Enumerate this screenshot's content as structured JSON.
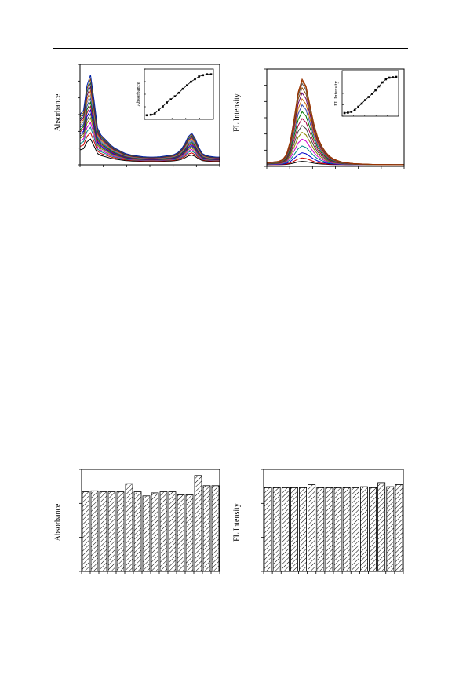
{
  "page": {
    "header_rule": true
  },
  "charts": [
    {
      "id": "absorbance-spectra",
      "type": "line",
      "ylabel": "Absorbance",
      "inset": {
        "type": "line",
        "ylabel": "Absorbance",
        "values": [
          0.04,
          0.05,
          0.08,
          0.16,
          0.24,
          0.33,
          0.4,
          0.47,
          0.55,
          0.64,
          0.72,
          0.8,
          0.86,
          0.92,
          0.95,
          0.97,
          0.97
        ]
      },
      "series_colors": [
        "#000000",
        "#cc0000",
        "#008888",
        "#cc00cc",
        "#888800",
        "#444444",
        "#0000cc",
        "#aa0044",
        "#007700",
        "#3344aa",
        "#888888",
        "#cc6600",
        "#660066",
        "#005555",
        "#884400",
        "#0022aa"
      ],
      "x": [
        0,
        1,
        2,
        3,
        4,
        5,
        6,
        7,
        8,
        9,
        10,
        11,
        12,
        13,
        14,
        15,
        16,
        17,
        18,
        19,
        20,
        21,
        22,
        23,
        24,
        25,
        26,
        27,
        28,
        29,
        30,
        31,
        32,
        33,
        34,
        35,
        36,
        37,
        38,
        39,
        40
      ],
      "base_shape": [
        0.55,
        0.6,
        0.88,
        1.0,
        0.72,
        0.4,
        0.32,
        0.28,
        0.24,
        0.2,
        0.17,
        0.15,
        0.13,
        0.11,
        0.1,
        0.09,
        0.085,
        0.08,
        0.075,
        0.072,
        0.07,
        0.07,
        0.072,
        0.075,
        0.08,
        0.085,
        0.09,
        0.1,
        0.12,
        0.16,
        0.22,
        0.3,
        0.34,
        0.28,
        0.18,
        0.11,
        0.09,
        0.08,
        0.075,
        0.07,
        0.07
      ],
      "scales": [
        0.62,
        0.78,
        0.92,
        1.04,
        1.16,
        1.26,
        1.36,
        1.46,
        1.56,
        1.66,
        1.76,
        1.86,
        1.96,
        2.06,
        2.16,
        2.26
      ]
    },
    {
      "id": "fluorescence-spectra",
      "type": "line",
      "ylabel": "FL Intensity",
      "inset": {
        "type": "line",
        "ylabel": "FL Intensity",
        "values": [
          0.02,
          0.03,
          0.05,
          0.1,
          0.18,
          0.26,
          0.35,
          0.43,
          0.51,
          0.6,
          0.7,
          0.8,
          0.88,
          0.92,
          0.93,
          0.94
        ]
      },
      "series_colors": [
        "#000000",
        "#cc0000",
        "#0000cc",
        "#008888",
        "#cc00cc",
        "#888800",
        "#444444",
        "#aa0044",
        "#007700",
        "#3344aa",
        "#cc6600",
        "#660066",
        "#884400",
        "#555555",
        "#aa4400",
        "#993300"
      ],
      "x": [
        0,
        1,
        2,
        3,
        4,
        5,
        6,
        7,
        8,
        9,
        10,
        11,
        12,
        13,
        14,
        15,
        16,
        17,
        18,
        19,
        20,
        21,
        22,
        23,
        24,
        25,
        26,
        27,
        28,
        29,
        30,
        31,
        32,
        33,
        34,
        35
      ],
      "base_shape": [
        0.02,
        0.03,
        0.035,
        0.04,
        0.06,
        0.12,
        0.28,
        0.55,
        0.85,
        1.0,
        0.92,
        0.7,
        0.48,
        0.32,
        0.22,
        0.15,
        0.1,
        0.07,
        0.05,
        0.035,
        0.025,
        0.02,
        0.015,
        0.012,
        0.01,
        0.008,
        0.006,
        0.005,
        0.004,
        0.003,
        0.002,
        0.002,
        0.001,
        0.001,
        0.001,
        0.001
      ],
      "scales": [
        0.04,
        0.08,
        0.14,
        0.22,
        0.3,
        0.38,
        0.46,
        0.54,
        0.62,
        0.7,
        0.77,
        0.84,
        0.9,
        0.95,
        0.98,
        1.0
      ]
    },
    {
      "id": "absorbance-bars",
      "type": "bar",
      "ylabel": "Absorbance",
      "values": [
        0.78,
        0.79,
        0.78,
        0.78,
        0.78,
        0.86,
        0.78,
        0.74,
        0.77,
        0.78,
        0.78,
        0.75,
        0.75,
        0.94,
        0.84,
        0.84
      ],
      "ylim": [
        0,
        1.0
      ]
    },
    {
      "id": "fl-intensity-bars",
      "type": "bar",
      "ylabel": "FL Intensity",
      "values": [
        0.82,
        0.82,
        0.82,
        0.82,
        0.82,
        0.85,
        0.82,
        0.82,
        0.82,
        0.82,
        0.82,
        0.83,
        0.82,
        0.87,
        0.83,
        0.85
      ],
      "ylim": [
        0,
        1.0
      ]
    }
  ]
}
